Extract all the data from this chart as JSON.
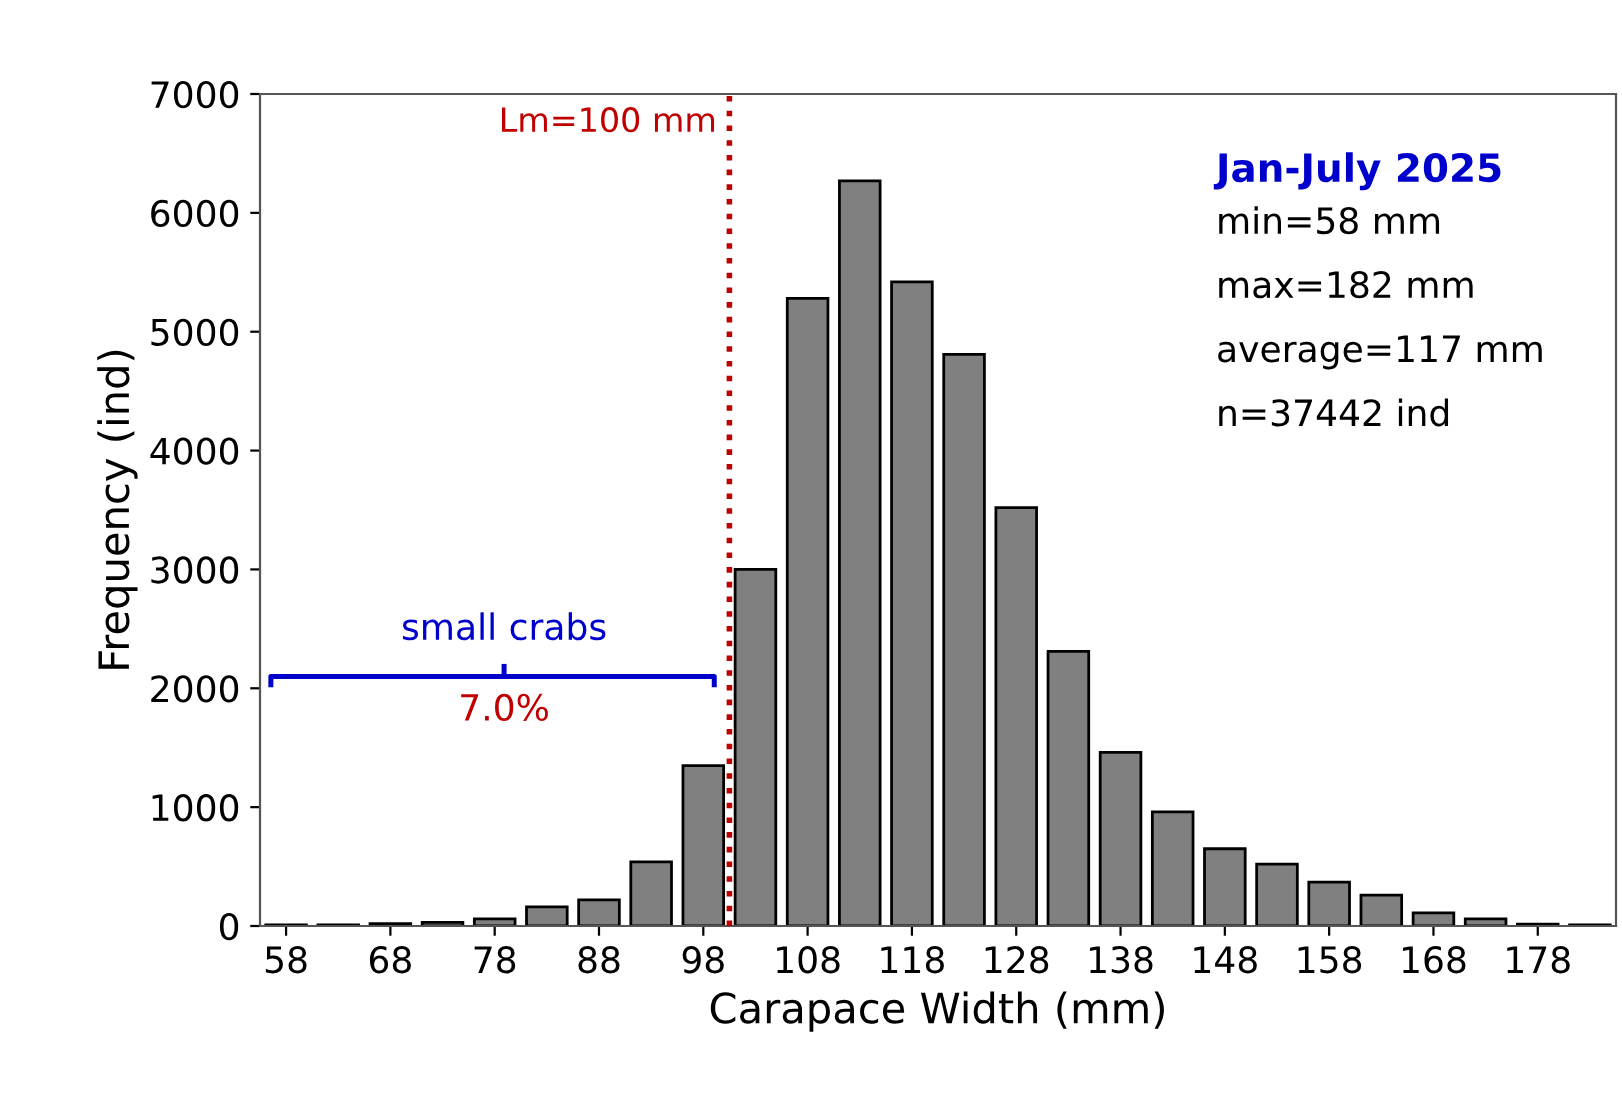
{
  "chart_data": {
    "type": "bar",
    "title": "Jan-July 2025",
    "xlabel": "Carapace Width (mm)",
    "ylabel": "Frequency (ind)",
    "x": [
      58,
      63,
      68,
      73,
      78,
      83,
      88,
      93,
      98,
      103,
      108,
      113,
      118,
      123,
      128,
      133,
      138,
      143,
      148,
      153,
      158,
      163,
      168,
      173,
      178,
      183
    ],
    "series": [
      {
        "color": "#808080",
        "values": [
          10,
          10,
          20,
          30,
          60,
          160,
          220,
          540,
          1350,
          3000,
          5280,
          6270,
          5420,
          4810,
          3520,
          2310,
          1460,
          960,
          650,
          520,
          370,
          260,
          110,
          60,
          15,
          10
        ]
      }
    ],
    "xlim": [
      55.5,
      185.5
    ],
    "xticks": [
      58,
      68,
      78,
      88,
      98,
      108,
      118,
      128,
      138,
      148,
      158,
      168,
      178
    ],
    "ylim": [
      0,
      7000
    ],
    "yticks": [
      0,
      1000,
      2000,
      3000,
      4000,
      5000,
      6000,
      7000
    ],
    "ref_lines": [
      {
        "axis": "x",
        "value": 100.5,
        "label": "Lm=100 mm",
        "color": "#c00000",
        "line_style": "dotted"
      }
    ],
    "annotations": [
      "min=58 mm",
      "max=182 mm",
      "average=117 mm",
      "n=37442 ind",
      "small crabs",
      "7.0%"
    ],
    "grid": false,
    "legend": false
  }
}
